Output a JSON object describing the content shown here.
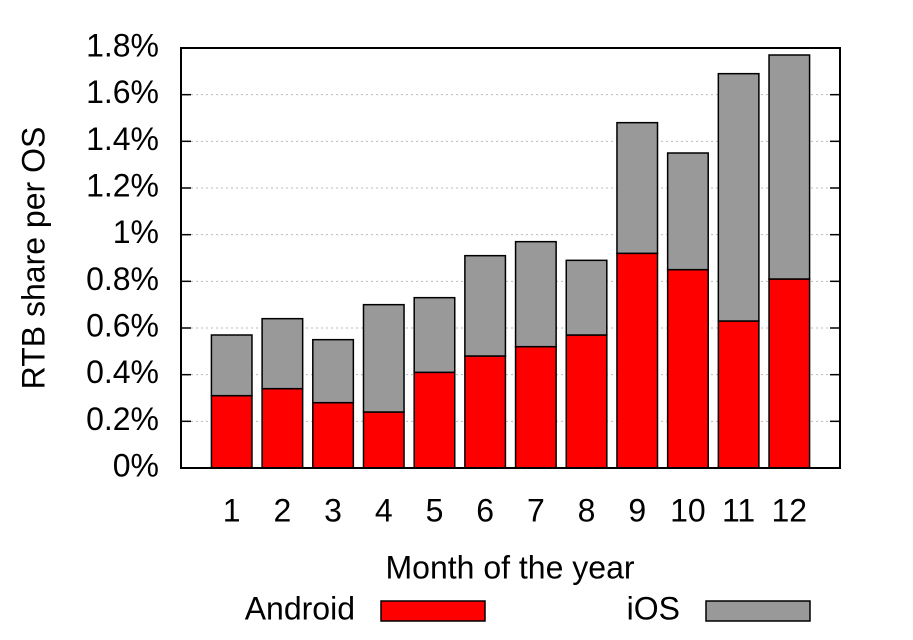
{
  "chart_data": {
    "type": "stacked_bar",
    "y_label": "RTB share per OS",
    "x_label": "Month of the year",
    "categories": [
      "1",
      "2",
      "3",
      "4",
      "5",
      "6",
      "7",
      "8",
      "9",
      "10",
      "11",
      "12"
    ],
    "series": [
      {
        "name": "Android",
        "color": "#ff0000",
        "values": [
          0.31,
          0.34,
          0.28,
          0.24,
          0.41,
          0.48,
          0.52,
          0.57,
          0.92,
          0.85,
          0.63,
          0.81
        ]
      },
      {
        "name": "iOS",
        "color": "#999999",
        "values": [
          0.26,
          0.3,
          0.27,
          0.46,
          0.32,
          0.43,
          0.45,
          0.32,
          0.56,
          0.5,
          1.06,
          0.96
        ]
      }
    ],
    "ylim": [
      0,
      1.8
    ],
    "yticks": [
      {
        "value": 0,
        "label": "0%"
      },
      {
        "value": 0.2,
        "label": "0.2%"
      },
      {
        "value": 0.4,
        "label": "0.4%"
      },
      {
        "value": 0.6,
        "label": "0.6%"
      },
      {
        "value": 0.8,
        "label": "0.8%"
      },
      {
        "value": 1,
        "label": "1%"
      },
      {
        "value": 1.2,
        "label": "1.2%"
      },
      {
        "value": 1.4,
        "label": "1.4%"
      },
      {
        "value": 1.6,
        "label": "1.6%"
      },
      {
        "value": 1.8,
        "label": "1.8%"
      }
    ],
    "grid": true,
    "legend": "bottom"
  }
}
